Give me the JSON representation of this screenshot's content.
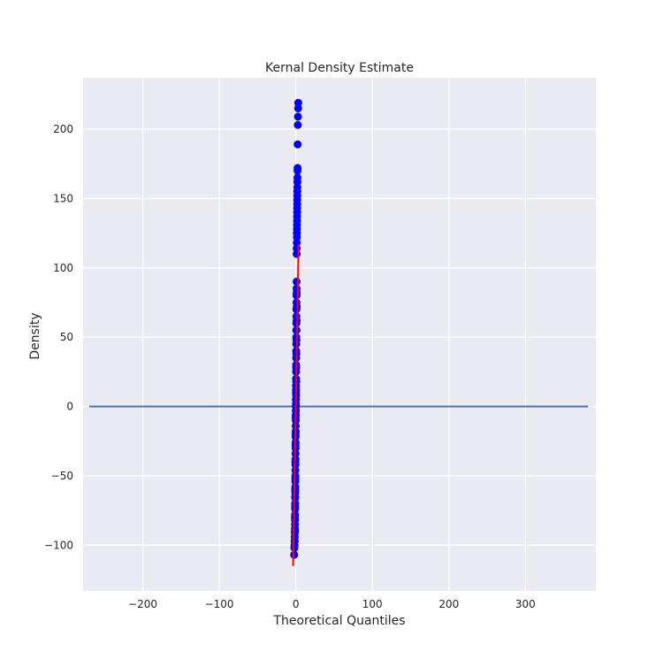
{
  "chart_data": {
    "type": "scatter",
    "title": "Kernal Density Estimate",
    "xlabel": "Theoretical Quantiles",
    "ylabel": "Density",
    "xlim": [
      -278,
      392
    ],
    "ylim": [
      -133,
      237
    ],
    "xticks": [
      -200,
      -100,
      0,
      100,
      200,
      300
    ],
    "yticks": [
      -100,
      -50,
      0,
      50,
      100,
      150,
      200
    ],
    "xtick_labels": [
      "−200",
      "−100",
      "0",
      "100",
      "200",
      "300"
    ],
    "ytick_labels": [
      "−100",
      "−50",
      "0",
      "50",
      "100",
      "150",
      "200"
    ],
    "grid": true,
    "background": "#eaeaf2",
    "point_color": "#0000ff",
    "fit_line_color": "#ff0000",
    "density_line_color": "#4c72b0",
    "fit_line": {
      "x": [
        -3.6,
        3.6
      ],
      "y": [
        -115,
        117
      ]
    },
    "density_line": {
      "x": [
        -270,
        382
      ],
      "y": [
        0,
        0
      ]
    },
    "points": [
      [
        3.2,
        219
      ],
      [
        3.0,
        215
      ],
      [
        2.8,
        209
      ],
      [
        2.6,
        203
      ],
      [
        2.4,
        189
      ],
      [
        2.3,
        172
      ],
      [
        2.2,
        170
      ],
      [
        2.1,
        165
      ],
      [
        2.0,
        162
      ],
      [
        2.0,
        158
      ],
      [
        1.9,
        155
      ],
      [
        1.9,
        152
      ],
      [
        1.8,
        149
      ],
      [
        1.8,
        146
      ],
      [
        1.7,
        143
      ],
      [
        1.7,
        140
      ],
      [
        1.6,
        137
      ],
      [
        1.6,
        134
      ],
      [
        1.5,
        131
      ],
      [
        1.5,
        128
      ],
      [
        1.4,
        125
      ],
      [
        1.4,
        122
      ],
      [
        1.3,
        118
      ],
      [
        1.2,
        114
      ],
      [
        1.1,
        110
      ],
      [
        1.0,
        90
      ],
      [
        0.95,
        85
      ],
      [
        0.9,
        80
      ],
      [
        0.85,
        75
      ],
      [
        0.8,
        70
      ],
      [
        0.75,
        65
      ],
      [
        0.7,
        60
      ],
      [
        0.65,
        55
      ],
      [
        0.6,
        50
      ],
      [
        0.55,
        45
      ],
      [
        0.5,
        40
      ],
      [
        0.45,
        35
      ],
      [
        0.4,
        30
      ],
      [
        0.35,
        25
      ],
      [
        0.3,
        20
      ],
      [
        0.25,
        15
      ],
      [
        0.2,
        10
      ],
      [
        0.15,
        5
      ],
      [
        0.1,
        2
      ],
      [
        0.05,
        0
      ],
      [
        0.0,
        -3
      ],
      [
        -0.05,
        -6
      ],
      [
        -0.1,
        -10
      ],
      [
        -0.15,
        -14
      ],
      [
        -0.2,
        -18
      ],
      [
        -0.25,
        -22
      ],
      [
        -0.3,
        -26
      ],
      [
        -0.35,
        -30
      ],
      [
        -0.4,
        -34
      ],
      [
        -0.45,
        -38
      ],
      [
        -0.5,
        -42
      ],
      [
        -0.55,
        -46
      ],
      [
        -0.6,
        -50
      ],
      [
        -0.65,
        -54
      ],
      [
        -0.7,
        -58
      ],
      [
        -0.75,
        -62
      ],
      [
        -0.8,
        -66
      ],
      [
        -0.85,
        -70
      ],
      [
        -0.9,
        -74
      ],
      [
        -0.95,
        -78
      ],
      [
        -1.0,
        -82
      ],
      [
        -1.1,
        -85
      ],
      [
        -1.2,
        -88
      ],
      [
        -1.3,
        -91
      ],
      [
        -1.4,
        -94
      ],
      [
        -1.5,
        -97
      ],
      [
        -1.7,
        -100
      ],
      [
        -1.9,
        -102
      ],
      [
        -2.2,
        -107
      ],
      [
        0.5,
        28
      ],
      [
        0.6,
        18
      ],
      [
        0.4,
        8
      ],
      [
        -0.2,
        -8
      ],
      [
        -0.4,
        -28
      ],
      [
        -0.6,
        -40
      ],
      [
        0.8,
        48
      ],
      [
        1.0,
        62
      ],
      [
        -0.8,
        -60
      ],
      [
        -1.0,
        -72
      ],
      [
        0.3,
        12
      ],
      [
        -0.3,
        -20
      ],
      [
        0.7,
        38
      ],
      [
        -0.7,
        -52
      ],
      [
        1.2,
        72
      ],
      [
        -1.2,
        -80
      ],
      [
        0.9,
        55
      ],
      [
        -0.9,
        -65
      ],
      [
        1.1,
        82
      ],
      [
        -1.1,
        -90
      ]
    ]
  }
}
